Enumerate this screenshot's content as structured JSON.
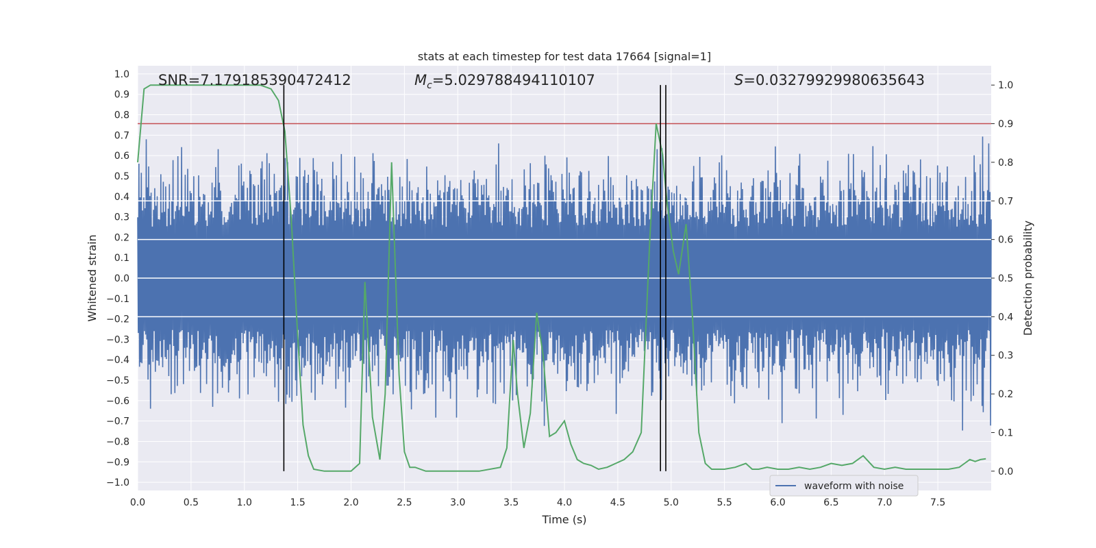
{
  "chart_data": {
    "type": "line",
    "title": "stats at each timestep for test data 17664 [signal=1]",
    "xlabel": "Time (s)",
    "ylabel": "Whitened strain",
    "y2label": "Detection probability",
    "xlim": [
      0.0,
      8.0
    ],
    "ylim": [
      -1.04,
      1.04
    ],
    "y2lim": [
      -0.05,
      1.05
    ],
    "xticks": [
      0.0,
      0.5,
      1.0,
      1.5,
      2.0,
      2.5,
      3.0,
      3.5,
      4.0,
      4.5,
      5.0,
      5.5,
      6.0,
      6.5,
      7.0,
      7.5
    ],
    "yticks": [
      -1.0,
      -0.9,
      -0.8,
      -0.7,
      -0.6,
      -0.5,
      -0.4,
      -0.3,
      -0.2,
      -0.1,
      0.0,
      0.1,
      0.2,
      0.3,
      0.4,
      0.5,
      0.6,
      0.7,
      0.8,
      0.9,
      1.0
    ],
    "y2ticks": [
      0.0,
      0.1,
      0.2,
      0.3,
      0.4,
      0.5,
      0.6,
      0.7,
      0.8,
      0.9,
      1.0
    ],
    "grid": true,
    "legend_position": "bottom-right",
    "annotations": {
      "snr": "SNR=7.179185390472412",
      "mc_symbol": "M",
      "mc_sub": "c",
      "mc_value": "=5.029788494110107",
      "s_symbol": "S",
      "s_value": "=0.03279929980635643"
    },
    "series": [
      {
        "name": "waveform with noise",
        "axis": "left",
        "color": "#4c72b0",
        "description": "dense whitened strain noise, amplitude roughly ±0.3 to ±0.9"
      },
      {
        "axis": "right",
        "color": "#55a868",
        "x": [
          0.0,
          0.06,
          0.12,
          0.25,
          0.5,
          0.75,
          1.0,
          1.15,
          1.25,
          1.32,
          1.38,
          1.44,
          1.5,
          1.55,
          1.6,
          1.65,
          1.75,
          1.9,
          2.0,
          2.08,
          2.13,
          2.2,
          2.27,
          2.32,
          2.38,
          2.45,
          2.5,
          2.55,
          2.6,
          2.7,
          2.8,
          3.0,
          3.2,
          3.4,
          3.46,
          3.52,
          3.56,
          3.62,
          3.68,
          3.74,
          3.8,
          3.86,
          3.92,
          4.0,
          4.06,
          4.12,
          4.18,
          4.25,
          4.32,
          4.4,
          4.48,
          4.56,
          4.64,
          4.72,
          4.8,
          4.86,
          4.92,
          4.96,
          5.02,
          5.07,
          5.14,
          5.2,
          5.26,
          5.32,
          5.38,
          5.44,
          5.5,
          5.6,
          5.7,
          5.76,
          5.82,
          5.9,
          6.0,
          6.1,
          6.2,
          6.3,
          6.4,
          6.5,
          6.6,
          6.7,
          6.8,
          6.9,
          7.0,
          7.1,
          7.2,
          7.3,
          7.4,
          7.5,
          7.6,
          7.7,
          7.75,
          7.8,
          7.85,
          7.9,
          7.95
        ],
        "y": [
          0.8,
          0.99,
          1.0,
          1.0,
          1.0,
          1.0,
          1.0,
          1.0,
          0.99,
          0.96,
          0.88,
          0.65,
          0.35,
          0.12,
          0.04,
          0.005,
          0.0,
          0.0,
          0.0,
          0.02,
          0.49,
          0.14,
          0.03,
          0.2,
          0.8,
          0.25,
          0.05,
          0.01,
          0.01,
          0.0,
          0.0,
          0.0,
          0.0,
          0.01,
          0.06,
          0.34,
          0.2,
          0.06,
          0.15,
          0.41,
          0.3,
          0.09,
          0.1,
          0.13,
          0.07,
          0.03,
          0.02,
          0.015,
          0.005,
          0.01,
          0.02,
          0.03,
          0.05,
          0.1,
          0.6,
          0.9,
          0.82,
          0.7,
          0.57,
          0.51,
          0.64,
          0.4,
          0.1,
          0.02,
          0.005,
          0.005,
          0.005,
          0.01,
          0.02,
          0.005,
          0.005,
          0.01,
          0.005,
          0.005,
          0.01,
          0.005,
          0.01,
          0.02,
          0.015,
          0.02,
          0.04,
          0.01,
          0.005,
          0.01,
          0.005,
          0.005,
          0.005,
          0.005,
          0.005,
          0.01,
          0.02,
          0.03,
          0.025,
          0.03,
          0.032
        ]
      }
    ],
    "threshold_line": {
      "axis": "right",
      "value": 0.9,
      "color": "#c44e52"
    },
    "vertical_markers": [
      1.37,
      4.9,
      4.95
    ],
    "white_hlines_right_axis": [
      0.4,
      0.5,
      0.6,
      0.7
    ]
  }
}
